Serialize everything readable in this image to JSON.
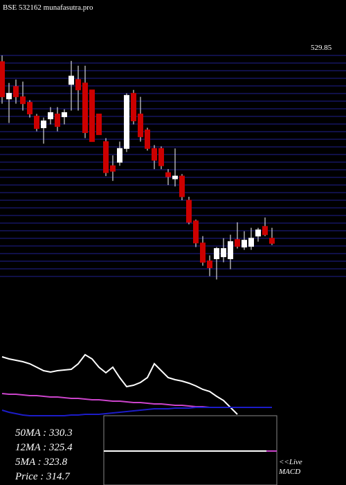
{
  "chart_data": {
    "type": "candlestick",
    "title": "BSE 532162 munafasutra.pro",
    "top_price_label": "529.85",
    "ylim": [
      272,
      530
    ],
    "open": [
      522.9,
      480.2,
      494.5,
      482.6,
      476.3,
      460.5,
      447.1,
      457.3,
      462.9,
      459.7,
      496.8,
      502.4,
      498.4,
      490.5,
      462.9,
      431.3,
      403.6,
      407.6,
      423.4,
      486.6,
      462.9,
      444.7,
      423.4,
      423.4,
      395.7,
      388.6,
      391.8,
      364.1,
      340.4,
      315.1,
      294.6,
      297,
      299.3,
      297,
      319.1,
      310.4,
      311.2,
      323,
      334.1,
      320.6
    ],
    "high": [
      530,
      498.4,
      502.4,
      500,
      478.7,
      462.9,
      458.9,
      470.8,
      470.8,
      468.4,
      523.7,
      518.2,
      518.2,
      490.5,
      462.9,
      435.2,
      415.5,
      431.3,
      486.6,
      490.5,
      482.6,
      447.1,
      427.3,
      425.7,
      399.7,
      423.4,
      394.1,
      368.1,
      342,
      323,
      300.9,
      310.4,
      320.6,
      324.6,
      338.8,
      328.6,
      332.5,
      332.5,
      344.3,
      332.5
    ],
    "low": [
      474.7,
      452.6,
      474.7,
      466.8,
      458.9,
      443.1,
      428.9,
      451,
      443.1,
      451,
      466.8,
      466.8,
      435.2,
      431.3,
      439.2,
      391.8,
      386.2,
      403.6,
      419.4,
      451,
      431.3,
      420.9,
      399.7,
      399.7,
      381.5,
      379.9,
      364.1,
      336.5,
      310.4,
      289.1,
      277.2,
      273.3,
      293,
      285.1,
      308.8,
      307.2,
      307.2,
      316.7,
      323,
      312.8
    ],
    "close": [
      482.6,
      486.6,
      482.6,
      474.7,
      462.9,
      446.3,
      455,
      464.5,
      448.6,
      464.5,
      506.3,
      490.5,
      441.5,
      431.3,
      439.2,
      395.7,
      397.3,
      423.4,
      484.2,
      455,
      436.8,
      423.4,
      409.9,
      403.6,
      391,
      391.8,
      368.1,
      338.8,
      315.1,
      293,
      286.7,
      308.8,
      308.8,
      316.7,
      311.2,
      318.3,
      320.6,
      330.1,
      324.6,
      314.7
    ],
    "up_color": "#ffffff",
    "down_color": "#cc0000",
    "grid_color": "#1f1f8f",
    "indicator": {
      "ylim": [
        0,
        100
      ],
      "series": [
        {
          "color": "#ffffff",
          "values": [
            85,
            82,
            80,
            78,
            75,
            70,
            65,
            63,
            65,
            66,
            67,
            75,
            88,
            82,
            70,
            62,
            70,
            55,
            42,
            44,
            48,
            55,
            75,
            65,
            55,
            52,
            50,
            47,
            43,
            38,
            35,
            28,
            22,
            12,
            2,
            null,
            null,
            null,
            null,
            null
          ]
        },
        {
          "color": "#cc44cc",
          "values": [
            32,
            31,
            31,
            30,
            29,
            29,
            28,
            27,
            27,
            26,
            25,
            25,
            24,
            23,
            23,
            22,
            21,
            21,
            20,
            19,
            19,
            18,
            17,
            17,
            16,
            15,
            15,
            14,
            13,
            13,
            12,
            12,
            12,
            12,
            12,
            12,
            12,
            12,
            12,
            12
          ]
        },
        {
          "color": "#1c1cc8",
          "values": [
            8,
            5,
            3,
            1,
            0,
            0,
            0,
            0,
            0,
            0,
            1,
            1,
            2,
            2,
            2,
            3,
            4,
            5,
            6,
            7,
            8,
            9,
            10,
            10,
            10,
            11,
            11,
            11,
            12,
            12,
            12,
            12,
            12,
            12,
            12,
            12,
            12,
            12,
            12,
            12
          ]
        }
      ]
    },
    "ma_labels": [
      "50MA : 330.3",
      "12MA : 325.4",
      "5MA : 323.8",
      "Price  : 314.7"
    ],
    "live_label": "<<Live",
    "macd_label": "MACD"
  }
}
